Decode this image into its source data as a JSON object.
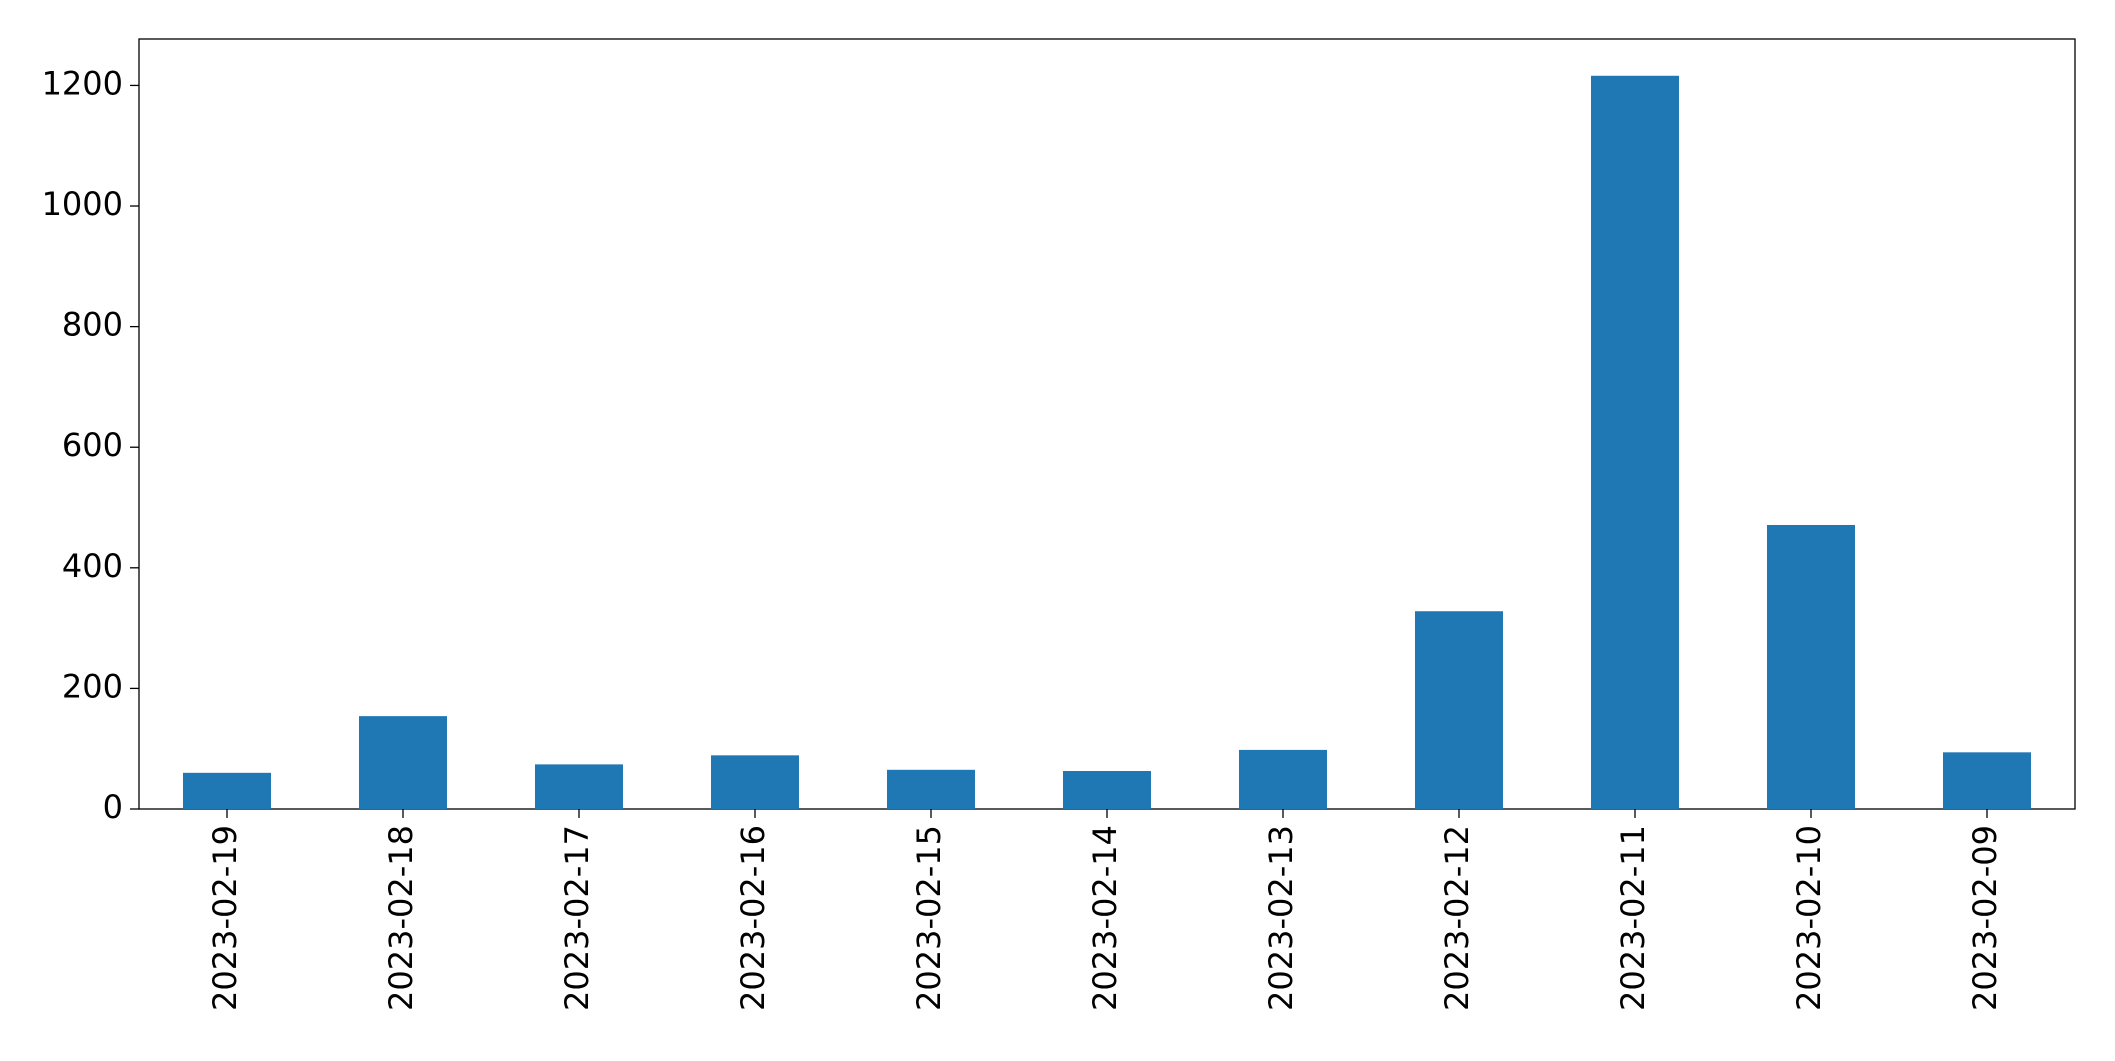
{
  "chart_data": {
    "type": "bar",
    "categories": [
      "2023-02-19",
      "2023-02-18",
      "2023-02-17",
      "2023-02-16",
      "2023-02-15",
      "2023-02-14",
      "2023-02-13",
      "2023-02-12",
      "2023-02-11",
      "2023-02-10",
      "2023-02-09"
    ],
    "values": [
      60,
      154,
      74,
      89,
      65,
      63,
      98,
      328,
      1216,
      471,
      94
    ],
    "color": "#1f77b4",
    "ylim": [
      0,
      1277
    ],
    "yticks": [
      0,
      200,
      400,
      600,
      800,
      1000,
      1200
    ],
    "grid": false
  }
}
